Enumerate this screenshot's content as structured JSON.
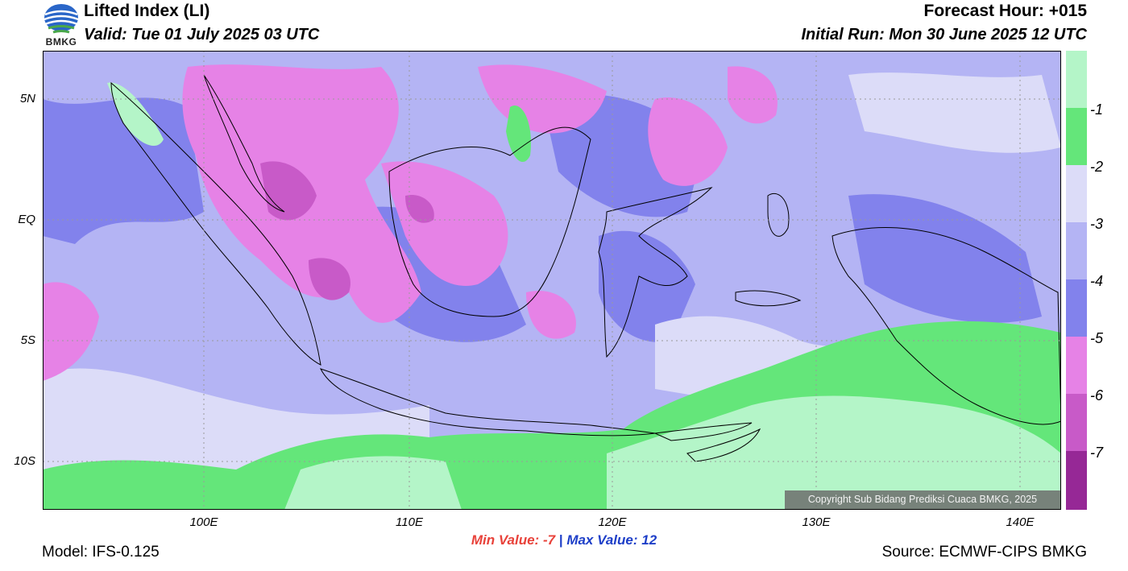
{
  "header": {
    "title": "Lifted Index (LI)",
    "valid": "Valid: Tue 01 July 2025 03 UTC",
    "forecast_hour": "Forecast Hour: +015",
    "initial_run": "Initial Run: Mon 30 June 2025 12 UTC",
    "logo_text": "BMKG"
  },
  "map": {
    "lat_labels": [
      "5N",
      "EQ",
      "5S",
      "10S"
    ],
    "lon_labels": [
      "100E",
      "110E",
      "120E",
      "130E",
      "140E"
    ],
    "copyright": "Copyright Sub Bidang Prediksi Cuaca BMKG, 2025"
  },
  "colorbar": {
    "labels": [
      "-1",
      "-2",
      "-3",
      "-4",
      "-5",
      "-6",
      "-7"
    ],
    "colors": [
      "#b4f5c8",
      "#64e67a",
      "#dcdcf8",
      "#b4b4f4",
      "#8282ec",
      "#e682e6",
      "#c85ac8",
      "#962896"
    ]
  },
  "stats": {
    "min_label": "Min Value:",
    "min_value": "-7",
    "separator": "|",
    "max_label": "Max Value:",
    "max_value": "12"
  },
  "footer": {
    "model": "Model: IFS-0.125",
    "source": "Source: ECMWF-CIPS BMKG"
  }
}
